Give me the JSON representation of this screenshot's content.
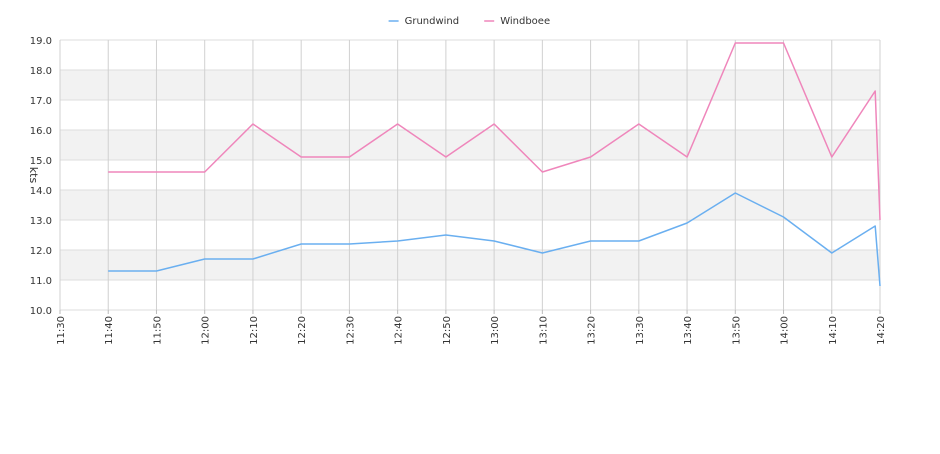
{
  "chart_data": {
    "type": "line",
    "title": "",
    "xlabel": "",
    "ylabel": "kts",
    "ylim": [
      10.0,
      19.0
    ],
    "yticks": [
      "10.0",
      "11.0",
      "12.0",
      "13.0",
      "14.0",
      "15.0",
      "16.0",
      "17.0",
      "18.0",
      "19.0"
    ],
    "x_axis_range": [
      "11:30",
      "14:20"
    ],
    "xticks": [
      "11:30",
      "11:40",
      "11:50",
      "12:00",
      "12:10",
      "12:20",
      "12:30",
      "12:40",
      "12:50",
      "13:00",
      "13:10",
      "13:20",
      "13:30",
      "13:40",
      "13:50",
      "14:00",
      "14:10",
      "14:20"
    ],
    "grid": true,
    "legend": "top-center",
    "series": [
      {
        "name": "Grundwind",
        "color": "#6aaff0",
        "points": [
          [
            "11:40",
            11.3
          ],
          [
            "11:50",
            11.3
          ],
          [
            "12:00",
            11.7
          ],
          [
            "12:10",
            11.7
          ],
          [
            "12:20",
            12.2
          ],
          [
            "12:30",
            12.2
          ],
          [
            "12:40",
            12.3
          ],
          [
            "12:50",
            12.5
          ],
          [
            "13:00",
            12.3
          ],
          [
            "13:10",
            11.9
          ],
          [
            "13:20",
            12.3
          ],
          [
            "13:30",
            12.3
          ],
          [
            "13:40",
            12.9
          ],
          [
            "13:50",
            13.9
          ],
          [
            "14:00",
            13.1
          ],
          [
            "14:10",
            11.9
          ],
          [
            "14:19",
            12.8
          ],
          [
            "14:20",
            10.8
          ]
        ]
      },
      {
        "name": "Windboee",
        "color": "#ef86bb",
        "points": [
          [
            "11:40",
            14.6
          ],
          [
            "11:50",
            14.6
          ],
          [
            "12:00",
            14.6
          ],
          [
            "12:10",
            16.2
          ],
          [
            "12:20",
            15.1
          ],
          [
            "12:30",
            15.1
          ],
          [
            "12:40",
            16.2
          ],
          [
            "12:50",
            15.1
          ],
          [
            "13:00",
            16.2
          ],
          [
            "13:10",
            14.6
          ],
          [
            "13:20",
            15.1
          ],
          [
            "13:30",
            16.2
          ],
          [
            "13:40",
            15.1
          ],
          [
            "13:50",
            18.9
          ],
          [
            "14:00",
            18.9
          ],
          [
            "14:10",
            15.1
          ],
          [
            "14:19",
            17.3
          ],
          [
            "14:20",
            13.0
          ]
        ]
      }
    ]
  }
}
